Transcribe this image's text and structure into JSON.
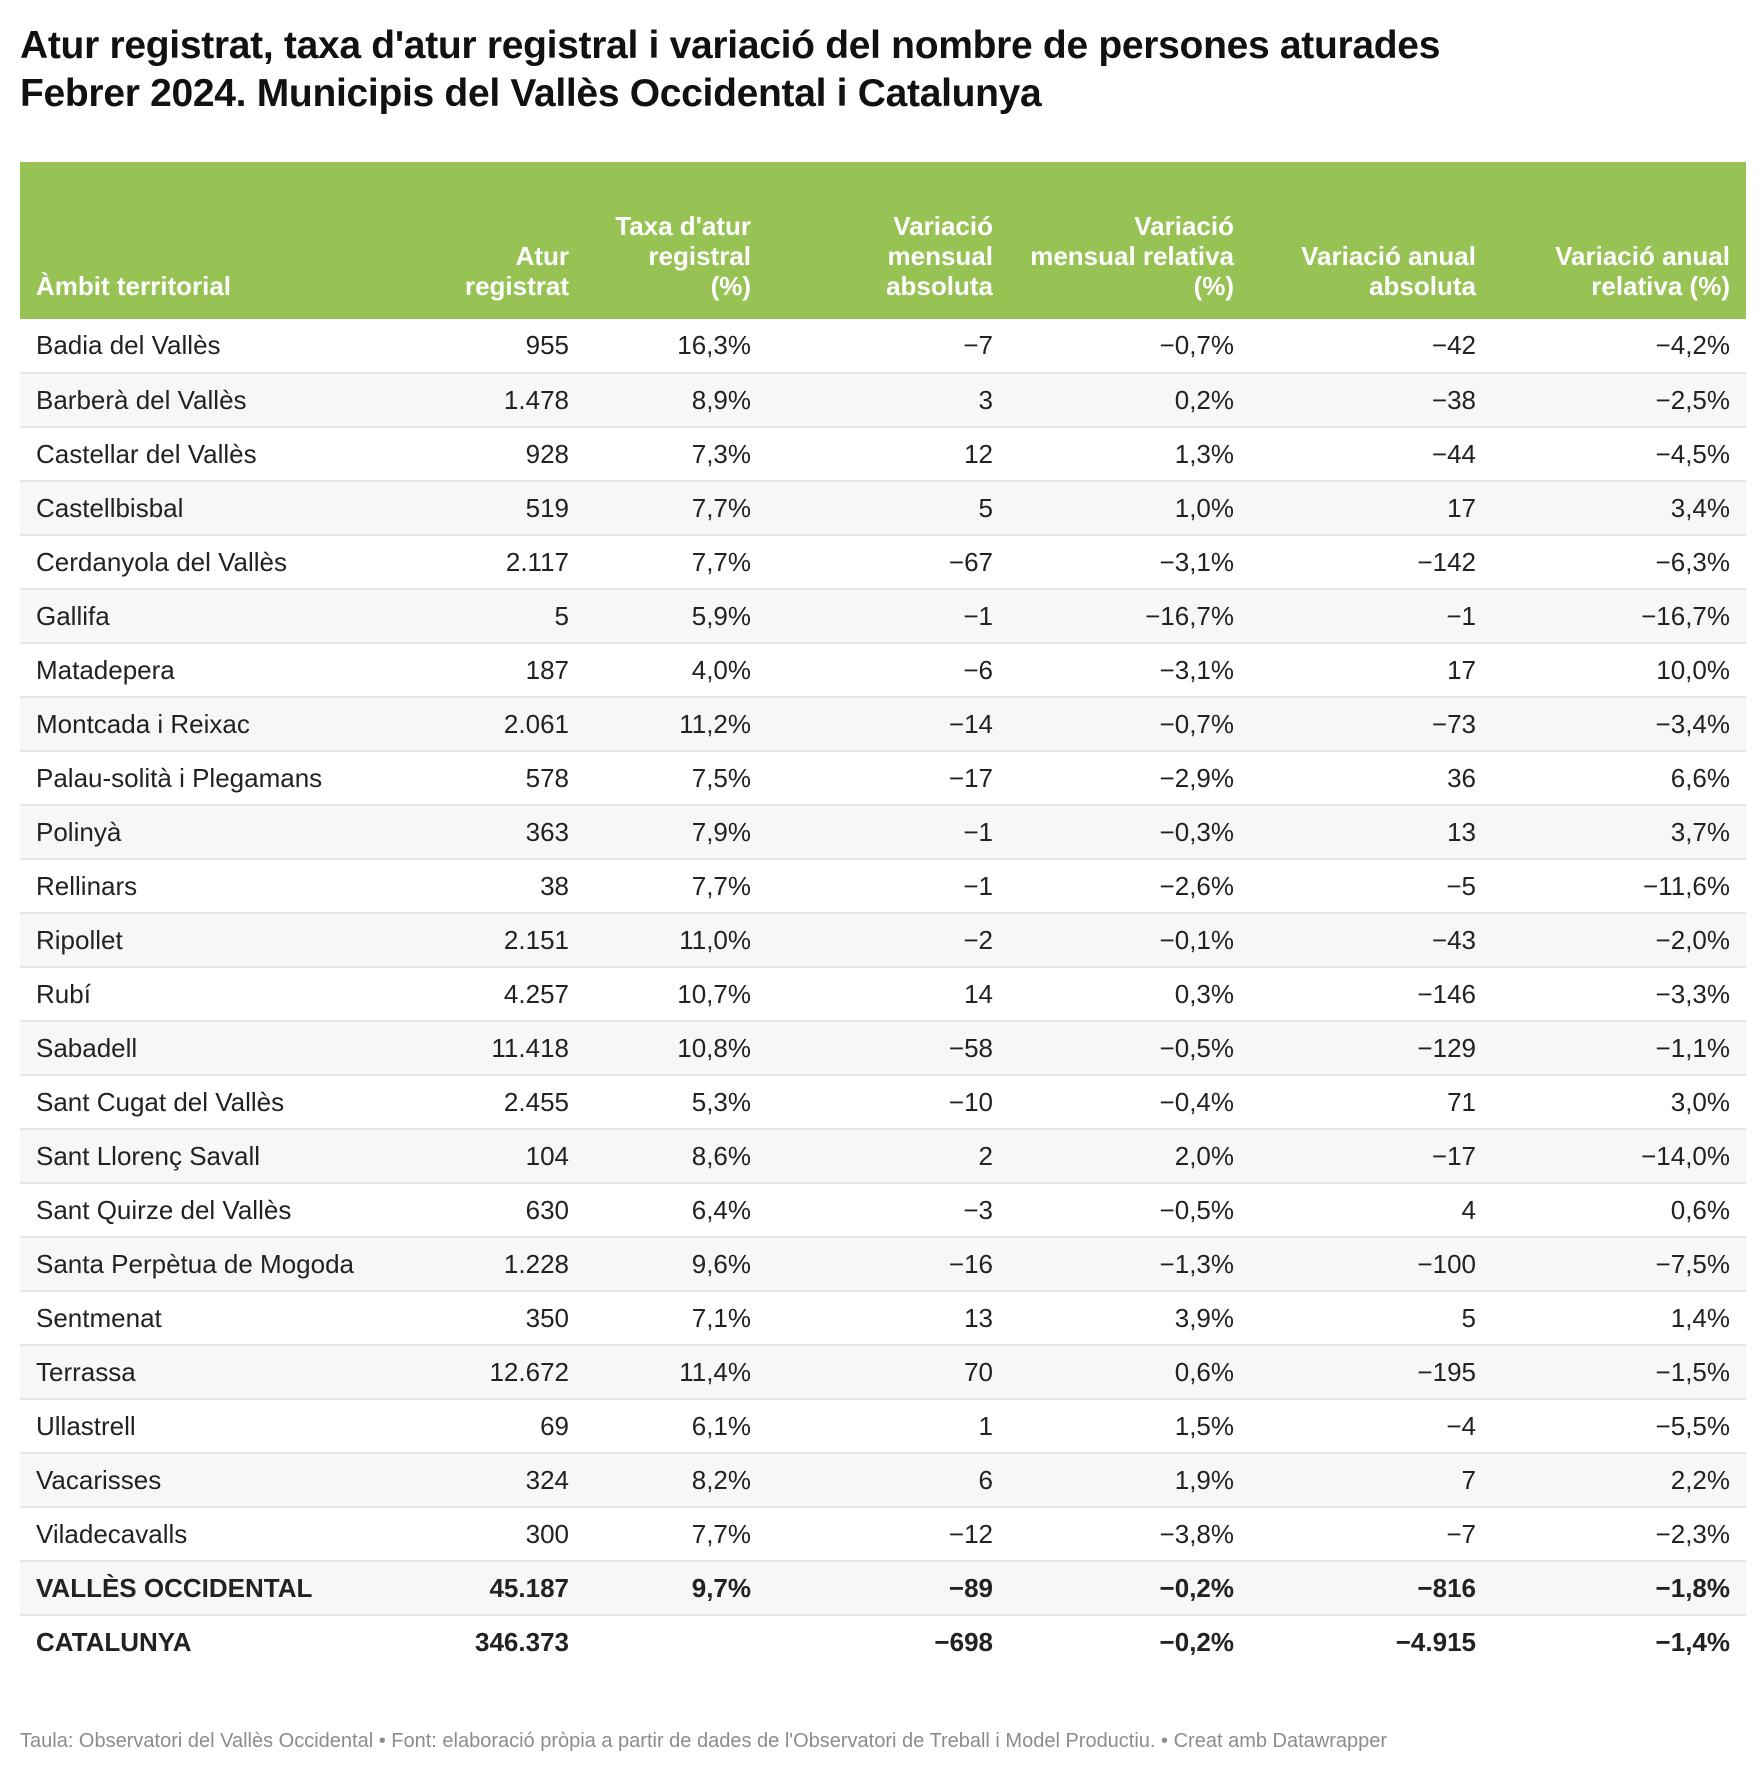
{
  "title_line1": "Atur registrat, taxa d'atur registral i variació del nombre de persones aturades",
  "title_line2": "Febrer 2024. Municipis del Vallès Occidental i Catalunya",
  "colors": {
    "header_bg": "#97c354",
    "header_text": "#ffffff",
    "stripe": "#f7f7f7"
  },
  "chart_data": {
    "type": "table",
    "columns": [
      "Àmbit territorial",
      "Atur registrat",
      "Taxa d'atur registral (%)",
      "Variació mensual absoluta",
      "Variació mensual relativa (%)",
      "Variació anual absoluta",
      "Variació anual relativa (%)"
    ],
    "rows": [
      [
        "Badia del Vallès",
        "955",
        "16,3%",
        "−7",
        "−0,7%",
        "−42",
        "−4,2%"
      ],
      [
        "Barberà del Vallès",
        "1.478",
        "8,9%",
        "3",
        "0,2%",
        "−38",
        "−2,5%"
      ],
      [
        "Castellar del Vallès",
        "928",
        "7,3%",
        "12",
        "1,3%",
        "−44",
        "−4,5%"
      ],
      [
        "Castellbisbal",
        "519",
        "7,7%",
        "5",
        "1,0%",
        "17",
        "3,4%"
      ],
      [
        "Cerdanyola del Vallès",
        "2.117",
        "7,7%",
        "−67",
        "−3,1%",
        "−142",
        "−6,3%"
      ],
      [
        "Gallifa",
        "5",
        "5,9%",
        "−1",
        "−16,7%",
        "−1",
        "−16,7%"
      ],
      [
        "Matadepera",
        "187",
        "4,0%",
        "−6",
        "−3,1%",
        "17",
        "10,0%"
      ],
      [
        "Montcada i Reixac",
        "2.061",
        "11,2%",
        "−14",
        "−0,7%",
        "−73",
        "−3,4%"
      ],
      [
        "Palau-solità i Plegamans",
        "578",
        "7,5%",
        "−17",
        "−2,9%",
        "36",
        "6,6%"
      ],
      [
        "Polinyà",
        "363",
        "7,9%",
        "−1",
        "−0,3%",
        "13",
        "3,7%"
      ],
      [
        "Rellinars",
        "38",
        "7,7%",
        "−1",
        "−2,6%",
        "−5",
        "−11,6%"
      ],
      [
        "Ripollet",
        "2.151",
        "11,0%",
        "−2",
        "−0,1%",
        "−43",
        "−2,0%"
      ],
      [
        "Rubí",
        "4.257",
        "10,7%",
        "14",
        "0,3%",
        "−146",
        "−3,3%"
      ],
      [
        "Sabadell",
        "11.418",
        "10,8%",
        "−58",
        "−0,5%",
        "−129",
        "−1,1%"
      ],
      [
        "Sant Cugat del Vallès",
        "2.455",
        "5,3%",
        "−10",
        "−0,4%",
        "71",
        "3,0%"
      ],
      [
        "Sant Llorenç Savall",
        "104",
        "8,6%",
        "2",
        "2,0%",
        "−17",
        "−14,0%"
      ],
      [
        "Sant Quirze del Vallès",
        "630",
        "6,4%",
        "−3",
        "−0,5%",
        "4",
        "0,6%"
      ],
      [
        "Santa Perpètua de Mogoda",
        "1.228",
        "9,6%",
        "−16",
        "−1,3%",
        "−100",
        "−7,5%"
      ],
      [
        "Sentmenat",
        "350",
        "7,1%",
        "13",
        "3,9%",
        "5",
        "1,4%"
      ],
      [
        "Terrassa",
        "12.672",
        "11,4%",
        "70",
        "0,6%",
        "−195",
        "−1,5%"
      ],
      [
        "Ullastrell",
        "69",
        "6,1%",
        "1",
        "1,5%",
        "−4",
        "−5,5%"
      ],
      [
        "Vacarisses",
        "324",
        "8,2%",
        "6",
        "1,9%",
        "7",
        "2,2%"
      ],
      [
        "Viladecavalls",
        "300",
        "7,7%",
        "−12",
        "−3,8%",
        "−7",
        "−2,3%"
      ]
    ],
    "total_rows": [
      [
        "VALLÈS OCCIDENTAL",
        "45.187",
        "9,7%",
        "−89",
        "−0,2%",
        "−816",
        "−1,8%"
      ],
      [
        "CATALUNYA",
        "346.373",
        "",
        "−698",
        "−0,2%",
        "−4.915",
        "−1,4%"
      ]
    ]
  },
  "footer": "Taula: Observatori del Vallès Occidental • Font: elaboració pròpia a partir de dades de l'Observatori de Treball i Model Productiu.  • Creat amb Datawrapper"
}
